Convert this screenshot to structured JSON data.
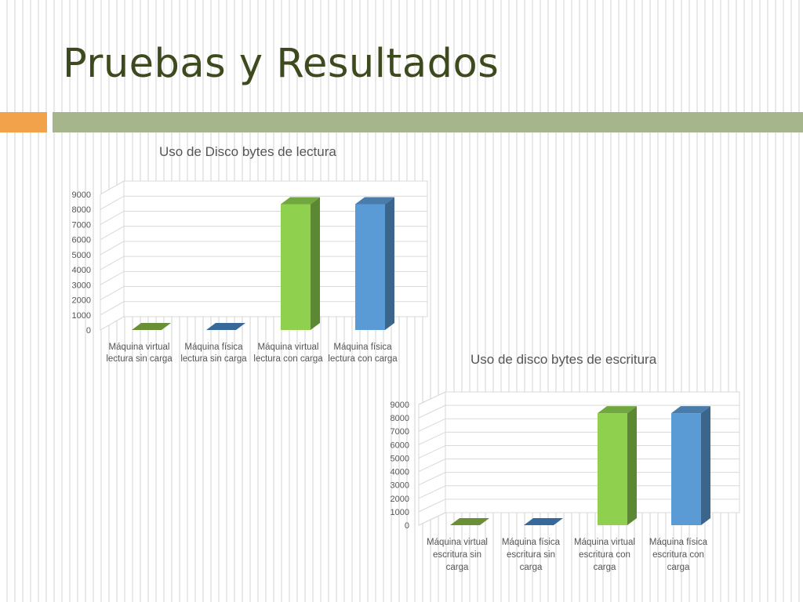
{
  "slide": {
    "title": "Pruebas y Resultados",
    "colors": {
      "title": "#3d4a1e",
      "accent_orange": "#f2a24a",
      "accent_green": "#a7b58c"
    }
  },
  "chart_data": [
    {
      "type": "bar",
      "title": "Uso de Disco bytes de lectura",
      "categories": [
        [
          "Máquina virtual",
          "lectura sin carga"
        ],
        [
          "Máquina física",
          "lectura sin carga"
        ],
        [
          "Máquina virtual",
          "lectura con carga"
        ],
        [
          "Máquina física",
          "lectura con carga"
        ]
      ],
      "values": [
        0,
        0,
        8350,
        8350
      ],
      "ylim": [
        0,
        9000
      ],
      "yticks": [
        "0",
        "1000",
        "2000",
        "3000",
        "4000",
        "5000",
        "6000",
        "7000",
        "8000",
        "9000"
      ],
      "bar_colors": [
        "#76a03d",
        "#3d74ab",
        "#8fd14f",
        "#5b9bd5"
      ],
      "grid": true,
      "style": "3d-column"
    },
    {
      "type": "bar",
      "title": "Uso de disco bytes de escritura",
      "categories": [
        [
          "Máquina virtual",
          "escritura sin",
          "carga"
        ],
        [
          "Máquina física",
          "escritura sin",
          "carga"
        ],
        [
          "Máquina virtual",
          "escritura con",
          "carga"
        ],
        [
          "Máquina física",
          "escritura con",
          "carga"
        ]
      ],
      "values": [
        0,
        0,
        8350,
        8350
      ],
      "ylim": [
        0,
        9000
      ],
      "yticks": [
        "0",
        "1000",
        "2000",
        "3000",
        "4000",
        "5000",
        "6000",
        "7000",
        "8000",
        "9000"
      ],
      "bar_colors": [
        "#76a03d",
        "#3d74ab",
        "#8fd14f",
        "#5b9bd5"
      ],
      "grid": true,
      "style": "3d-column"
    }
  ]
}
